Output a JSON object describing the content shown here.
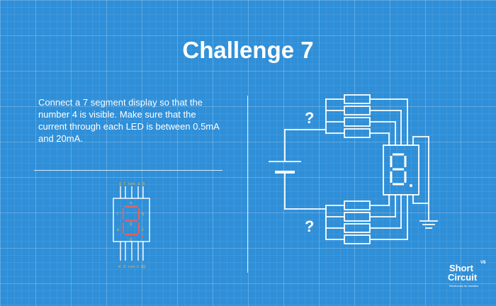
{
  "title": "Challenge 7",
  "instructions": "Connect a 7 segment display so that the number 4 is visible. Make sure that the current through each LED is between 0.5mA and 20mA.",
  "pinout": {
    "top_pins": [
      "g",
      "f",
      "com",
      "a",
      "b"
    ],
    "bottom_pins": [
      "e",
      "d",
      "com",
      "c",
      "dp"
    ],
    "segment_labels": {
      "a": "a",
      "b": "b",
      "c": "c",
      "d": "d",
      "e": "e",
      "f": "f",
      "g": "g"
    }
  },
  "circuit": {
    "unknown_top": "?",
    "unknown_bottom": "?",
    "display_digit": "8."
  },
  "logo": {
    "line1": "Short",
    "line2": "Circuit",
    "version": "V8",
    "tagline": "Electronics for newbies"
  },
  "colors": {
    "background": "#2f8fd8",
    "line": "#ffffff",
    "segment": "#e8625a",
    "pin_label": "#f2b233"
  }
}
